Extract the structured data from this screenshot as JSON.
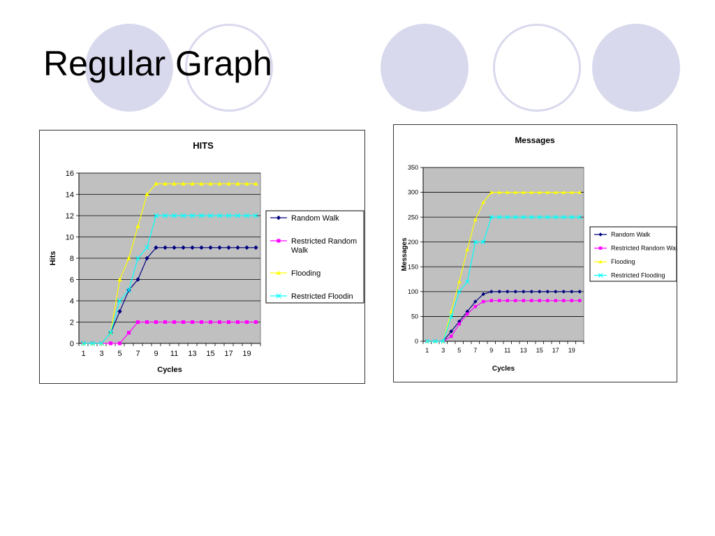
{
  "slide": {
    "title": "Regular Graph",
    "accent_color": "#d9d9ee"
  },
  "chart_data": [
    {
      "type": "line",
      "title": "HITS",
      "xlabel": "Cycles",
      "ylabel": "Hits",
      "x": [
        1,
        2,
        3,
        4,
        5,
        6,
        7,
        8,
        9,
        10,
        11,
        12,
        13,
        14,
        15,
        16,
        17,
        18,
        19,
        20
      ],
      "x_ticks": [
        "1",
        "3",
        "5",
        "7",
        "9",
        "11",
        "13",
        "15",
        "17",
        "19"
      ],
      "y_ticks": [
        "0",
        "2",
        "4",
        "6",
        "8",
        "10",
        "12",
        "14",
        "16"
      ],
      "ylim": [
        0,
        16
      ],
      "grid": true,
      "legend": "right",
      "plot_background": "#c0c0c0",
      "series": [
        {
          "name": "Random Walk",
          "color": "#000080",
          "marker": "diamond",
          "values": [
            0,
            0,
            0,
            1,
            3,
            5,
            6,
            8,
            9,
            9,
            9,
            9,
            9,
            9,
            9,
            9,
            9,
            9,
            9,
            9
          ]
        },
        {
          "name": "Restricted Random Walk",
          "color": "#ff00ff",
          "marker": "square",
          "values": [
            0,
            0,
            0,
            0,
            0,
            1,
            2,
            2,
            2,
            2,
            2,
            2,
            2,
            2,
            2,
            2,
            2,
            2,
            2,
            2
          ]
        },
        {
          "name": "Flooding",
          "color": "#ffff00",
          "marker": "triangle",
          "values": [
            0,
            0,
            0,
            1,
            6,
            8,
            11,
            14,
            15,
            15,
            15,
            15,
            15,
            15,
            15,
            15,
            15,
            15,
            15,
            15
          ]
        },
        {
          "name": "Restricted Floodin",
          "color": "#00ffff",
          "marker": "x",
          "values": [
            0,
            0,
            0,
            1,
            4,
            5,
            8,
            9,
            12,
            12,
            12,
            12,
            12,
            12,
            12,
            12,
            12,
            12,
            12,
            12
          ]
        }
      ]
    },
    {
      "type": "line",
      "title": "Messages",
      "xlabel": "Cycles",
      "ylabel": "Messages",
      "x": [
        1,
        2,
        3,
        4,
        5,
        6,
        7,
        8,
        9,
        10,
        11,
        12,
        13,
        14,
        15,
        16,
        17,
        18,
        19,
        20
      ],
      "x_ticks": [
        "1",
        "3",
        "5",
        "7",
        "9",
        "11",
        "13",
        "15",
        "17",
        "19"
      ],
      "y_ticks": [
        "0",
        "50",
        "100",
        "150",
        "200",
        "250",
        "300",
        "350"
      ],
      "ylim": [
        0,
        350
      ],
      "grid": true,
      "legend": "right",
      "plot_background": "#c0c0c0",
      "series": [
        {
          "name": "Random Walk",
          "color": "#000080",
          "marker": "diamond",
          "values": [
            0,
            0,
            0,
            20,
            40,
            60,
            80,
            95,
            100,
            100,
            100,
            100,
            100,
            100,
            100,
            100,
            100,
            100,
            100,
            100
          ]
        },
        {
          "name": "Restricted Random Walk",
          "color": "#ff00ff",
          "marker": "square",
          "values": [
            0,
            0,
            0,
            10,
            35,
            55,
            70,
            80,
            82,
            82,
            82,
            82,
            82,
            82,
            82,
            82,
            82,
            82,
            82,
            82
          ]
        },
        {
          "name": "Flooding",
          "color": "#ffff00",
          "marker": "triangle",
          "values": [
            0,
            0,
            0,
            60,
            120,
            185,
            245,
            280,
            300,
            300,
            300,
            300,
            300,
            300,
            300,
            300,
            300,
            300,
            300,
            300
          ]
        },
        {
          "name": "Restricted Flooding",
          "color": "#00ffff",
          "marker": "x",
          "values": [
            0,
            0,
            0,
            50,
            100,
            120,
            200,
            200,
            250,
            250,
            250,
            250,
            250,
            250,
            250,
            250,
            250,
            250,
            250,
            250
          ]
        }
      ]
    }
  ]
}
